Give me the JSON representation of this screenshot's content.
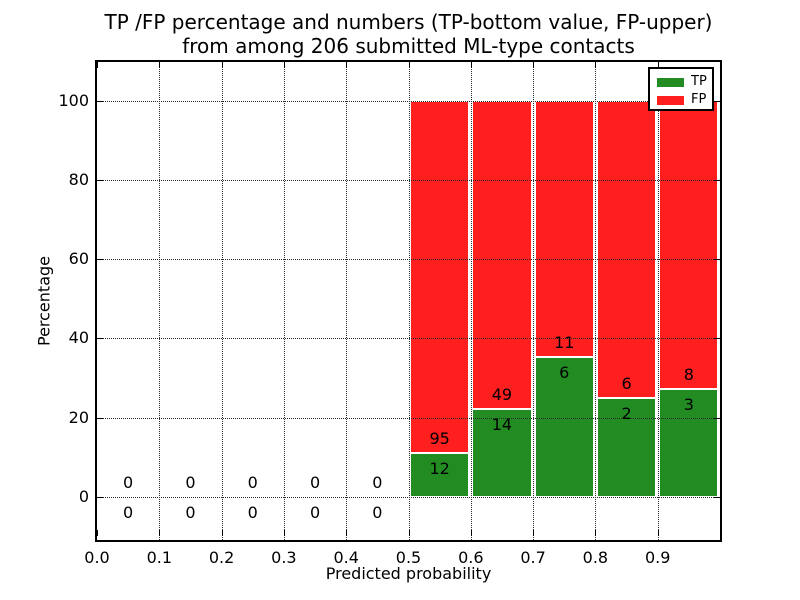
{
  "figure": {
    "title_line1": "TP /FP percentage and numbers (TP-bottom value, FP-upper)",
    "title_line2": "from among 206 submitted ML-type contacts",
    "xlabel": "Predicted probability",
    "ylabel": "Percentage"
  },
  "legend": {
    "items": [
      {
        "label": "TP",
        "color": "#228b22"
      },
      {
        "label": "FP",
        "color": "#ff1f1f"
      }
    ]
  },
  "colors": {
    "tp": "#228b22",
    "fp": "#ff1f1f",
    "grid": "#2a2a2a",
    "spine": "#000000",
    "background": "#ffffff"
  },
  "chart_data": {
    "type": "bar",
    "stacked": true,
    "title": "TP /FP percentage and numbers (TP-bottom value, FP-upper) from among 206 submitted ML-type contacts",
    "xlabel": "Predicted probability",
    "ylabel": "Percentage",
    "xlim": [
      0.0,
      1.0
    ],
    "ylim": [
      -11,
      110
    ],
    "x_tick_labels": [
      "0.0",
      "0.1",
      "0.2",
      "0.3",
      "0.4",
      "0.5",
      "0.6",
      "0.7",
      "0.8",
      "0.9"
    ],
    "y_tick_values": [
      0,
      20,
      40,
      60,
      80,
      100
    ],
    "grid": true,
    "grid_style": "dotted",
    "legend_position": "upper-right",
    "total_contacts": 206,
    "series": [
      {
        "name": "TP",
        "color": "#228b22",
        "counts": [
          0,
          0,
          0,
          0,
          0,
          12,
          14,
          6,
          2,
          3
        ]
      },
      {
        "name": "FP",
        "color": "#ff1f1f",
        "counts": [
          0,
          0,
          0,
          0,
          0,
          95,
          49,
          11,
          6,
          8
        ]
      }
    ],
    "bins": [
      {
        "range": [
          0.0,
          0.1
        ],
        "tp": 0,
        "fp": 0
      },
      {
        "range": [
          0.1,
          0.2
        ],
        "tp": 0,
        "fp": 0
      },
      {
        "range": [
          0.2,
          0.3
        ],
        "tp": 0,
        "fp": 0
      },
      {
        "range": [
          0.3,
          0.4
        ],
        "tp": 0,
        "fp": 0
      },
      {
        "range": [
          0.4,
          0.5
        ],
        "tp": 0,
        "fp": 0
      },
      {
        "range": [
          0.5,
          0.6
        ],
        "tp": 12,
        "fp": 95
      },
      {
        "range": [
          0.6,
          0.7
        ],
        "tp": 14,
        "fp": 49
      },
      {
        "range": [
          0.7,
          0.8
        ],
        "tp": 6,
        "fp": 11
      },
      {
        "range": [
          0.8,
          0.9
        ],
        "tp": 2,
        "fp": 6
      },
      {
        "range": [
          0.9,
          1.0
        ],
        "tp": 3,
        "fp": 8
      }
    ],
    "tp_percent_by_bin": [
      0,
      0,
      0,
      0,
      0,
      11.2,
      22.2,
      35.3,
      25.0,
      27.3
    ]
  }
}
